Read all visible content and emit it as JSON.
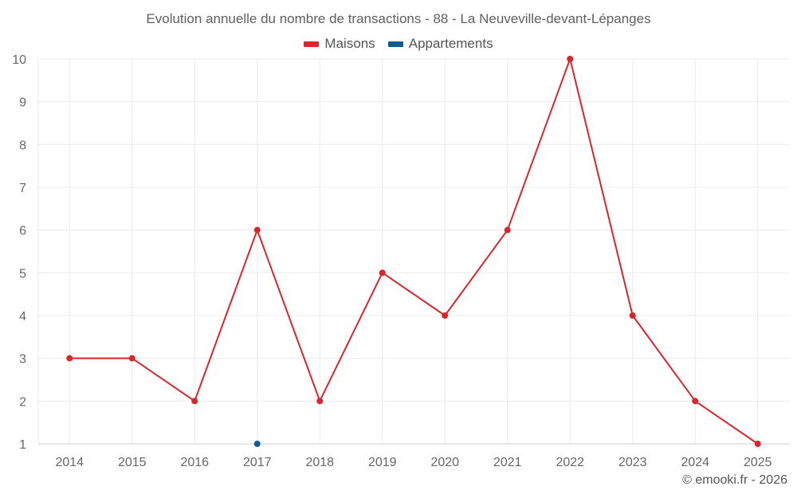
{
  "chart_data": {
    "type": "line",
    "title": "Evolution annuelle du nombre de transactions - 88 - La Neuveville-devant-Lépanges",
    "categories": [
      "2014",
      "2015",
      "2016",
      "2017",
      "2018",
      "2019",
      "2020",
      "2021",
      "2022",
      "2023",
      "2024",
      "2025"
    ],
    "ylim": [
      1,
      10
    ],
    "yticks": [
      "1",
      "2",
      "3",
      "4",
      "5",
      "6",
      "7",
      "8",
      "9",
      "10"
    ],
    "grid": true,
    "legend_position": "top-center",
    "series": [
      {
        "name": "Maisons",
        "color": "#d7262c",
        "values": [
          3,
          3,
          2,
          6,
          2,
          5,
          4,
          6,
          10,
          4,
          2,
          1
        ]
      },
      {
        "name": "Appartements",
        "color": "#0c5d94",
        "values": [
          null,
          null,
          null,
          1,
          null,
          null,
          null,
          null,
          null,
          null,
          null,
          null
        ]
      }
    ]
  },
  "credit": "© emooki.fr - 2026"
}
